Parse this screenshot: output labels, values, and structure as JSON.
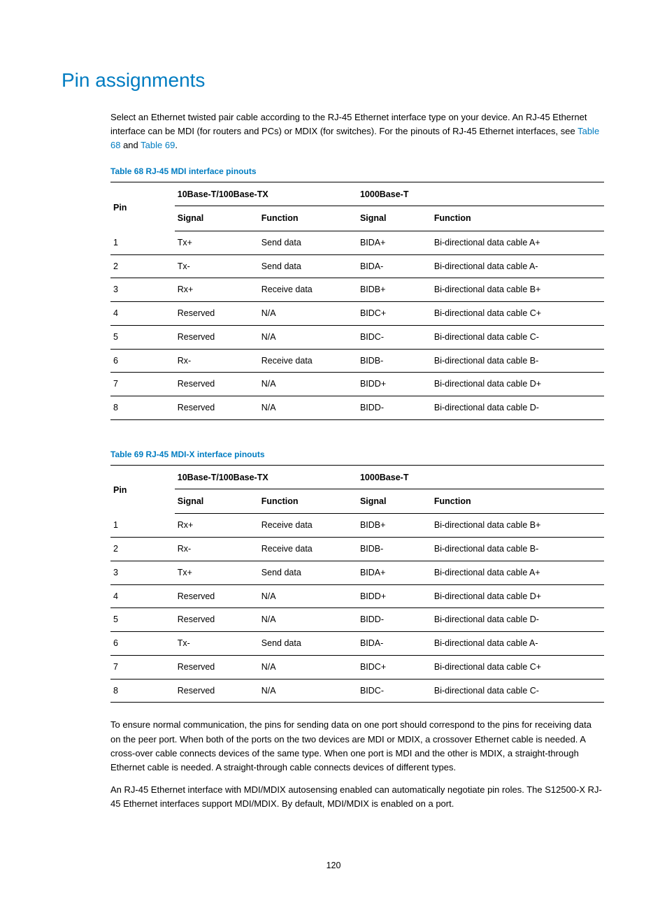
{
  "heading": "Pin assignments",
  "intro_parts": {
    "before_link1": "Select an Ethernet twisted pair cable according to the RJ-45 Ethernet interface type on your device. An RJ-45 Ethernet interface can be MDI (for routers and PCs) or MDIX (for switches). For the pinouts of RJ-45 Ethernet interfaces, see ",
    "link1": "Table 68",
    "between": " and ",
    "link2": "Table 69",
    "after": "."
  },
  "table68": {
    "caption": "Table 68 RJ-45 MDI interface pinouts",
    "group_headers": {
      "pin": "Pin",
      "g1": "10Base-T/100Base-TX",
      "g2": "1000Base-T"
    },
    "sub_headers": {
      "sig": "Signal",
      "fun": "Function"
    },
    "rows": [
      {
        "pin": "1",
        "s1": "Tx+",
        "f1": "Send data",
        "s2": "BIDA+",
        "f2": "Bi-directional data cable A+"
      },
      {
        "pin": "2",
        "s1": "Tx-",
        "f1": "Send data",
        "s2": "BIDA-",
        "f2": "Bi-directional data cable A-"
      },
      {
        "pin": "3",
        "s1": "Rx+",
        "f1": "Receive data",
        "s2": "BIDB+",
        "f2": "Bi-directional data cable B+"
      },
      {
        "pin": "4",
        "s1": "Reserved",
        "f1": "N/A",
        "s2": "BIDC+",
        "f2": "Bi-directional data cable C+"
      },
      {
        "pin": "5",
        "s1": "Reserved",
        "f1": "N/A",
        "s2": "BIDC-",
        "f2": "Bi-directional data cable C-"
      },
      {
        "pin": "6",
        "s1": "Rx-",
        "f1": "Receive data",
        "s2": "BIDB-",
        "f2": "Bi-directional data cable B-"
      },
      {
        "pin": "7",
        "s1": "Reserved",
        "f1": "N/A",
        "s2": "BIDD+",
        "f2": "Bi-directional data cable D+"
      },
      {
        "pin": "8",
        "s1": "Reserved",
        "f1": "N/A",
        "s2": "BIDD-",
        "f2": "Bi-directional data cable D-"
      }
    ]
  },
  "table69": {
    "caption": "Table 69 RJ-45 MDI-X interface pinouts",
    "group_headers": {
      "pin": "Pin",
      "g1": "10Base-T/100Base-TX",
      "g2": "1000Base-T"
    },
    "sub_headers": {
      "sig": "Signal",
      "fun": "Function"
    },
    "rows": [
      {
        "pin": "1",
        "s1": "Rx+",
        "f1": "Receive data",
        "s2": "BIDB+",
        "f2": "Bi-directional data cable B+"
      },
      {
        "pin": "2",
        "s1": "Rx-",
        "f1": "Receive data",
        "s2": "BIDB-",
        "f2": "Bi-directional data cable B-"
      },
      {
        "pin": "3",
        "s1": "Tx+",
        "f1": "Send data",
        "s2": "BIDA+",
        "f2": "Bi-directional data cable A+"
      },
      {
        "pin": "4",
        "s1": "Reserved",
        "f1": "N/A",
        "s2": "BIDD+",
        "f2": "Bi-directional data cable D+"
      },
      {
        "pin": "5",
        "s1": "Reserved",
        "f1": "N/A",
        "s2": "BIDD-",
        "f2": "Bi-directional data cable D-"
      },
      {
        "pin": "6",
        "s1": "Tx-",
        "f1": "Send data",
        "s2": "BIDA-",
        "f2": "Bi-directional data cable A-"
      },
      {
        "pin": "7",
        "s1": "Reserved",
        "f1": "N/A",
        "s2": "BIDC+",
        "f2": "Bi-directional data cable C+"
      },
      {
        "pin": "8",
        "s1": "Reserved",
        "f1": "N/A",
        "s2": "BIDC-",
        "f2": "Bi-directional data cable C-"
      }
    ]
  },
  "paragraph2": "To ensure normal communication, the pins for sending data on one port should correspond to the pins for receiving data on the peer port. When both of the ports on the two devices are MDI or MDIX, a crossover Ethernet cable is needed. A cross-over cable connects devices of the same type. When one port is MDI and the other is MDIX, a straight-through Ethernet cable is needed. A straight-through cable connects devices of different types.",
  "paragraph3": "An RJ-45 Ethernet interface with MDI/MDIX autosensing enabled can automatically negotiate pin roles. The S12500-X RJ-45 Ethernet interfaces support MDI/MDIX. By default, MDI/MDIX is enabled on a port.",
  "page_number": "120",
  "colors": {
    "accent": "#007cc1",
    "text": "#000000",
    "background": "#ffffff"
  }
}
